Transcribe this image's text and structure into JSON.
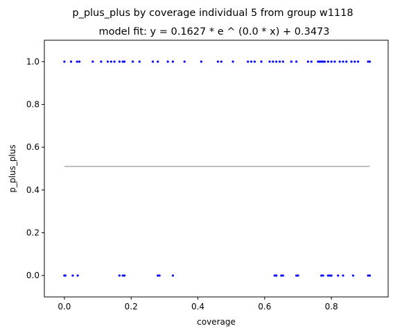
{
  "chart_data": {
    "type": "scatter",
    "title": "p_plus_plus by coverage individual 5 from group w1118",
    "subtitle": "model fit: y = 0.1627 * e ^ (0.0 * x) + 0.3473",
    "xlabel": "coverage",
    "ylabel": "p_plus_plus",
    "xlim": [
      -0.06,
      0.97
    ],
    "ylim": [
      -0.1,
      1.1
    ],
    "xticks": [
      "0.0",
      "0.2",
      "0.4",
      "0.6",
      "0.8"
    ],
    "xtick_values": [
      0.0,
      0.2,
      0.4,
      0.6,
      0.8
    ],
    "yticks": [
      "0.0",
      "0.2",
      "0.4",
      "0.6",
      "0.8",
      "1.0"
    ],
    "ytick_values": [
      0.0,
      0.2,
      0.4,
      0.6,
      0.8,
      1.0
    ],
    "grid": false,
    "point_color": "#0000ff",
    "fit_color": "#aaaaaa",
    "points_y1": [
      0.0,
      0.02,
      0.038,
      0.045,
      0.085,
      0.11,
      0.13,
      0.14,
      0.15,
      0.165,
      0.175,
      0.18,
      0.205,
      0.225,
      0.265,
      0.28,
      0.31,
      0.325,
      0.36,
      0.41,
      0.46,
      0.47,
      0.505,
      0.55,
      0.56,
      0.57,
      0.59,
      0.615,
      0.625,
      0.635,
      0.645,
      0.655,
      0.68,
      0.695,
      0.73,
      0.74,
      0.76,
      0.765,
      0.77,
      0.775,
      0.78,
      0.79,
      0.8,
      0.81,
      0.825,
      0.835,
      0.845,
      0.86,
      0.87,
      0.88,
      0.91,
      0.915
    ],
    "points_y0": [
      0.0,
      0.003,
      0.025,
      0.04,
      0.165,
      0.175,
      0.18,
      0.28,
      0.285,
      0.325,
      0.63,
      0.635,
      0.65,
      0.655,
      0.695,
      0.7,
      0.77,
      0.775,
      0.79,
      0.795,
      0.8,
      0.82,
      0.835,
      0.865,
      0.91,
      0.915
    ],
    "fit": {
      "a": 0.1627,
      "b": 0.0,
      "c": 0.3473,
      "x_range": [
        0.0,
        0.915
      ]
    }
  }
}
